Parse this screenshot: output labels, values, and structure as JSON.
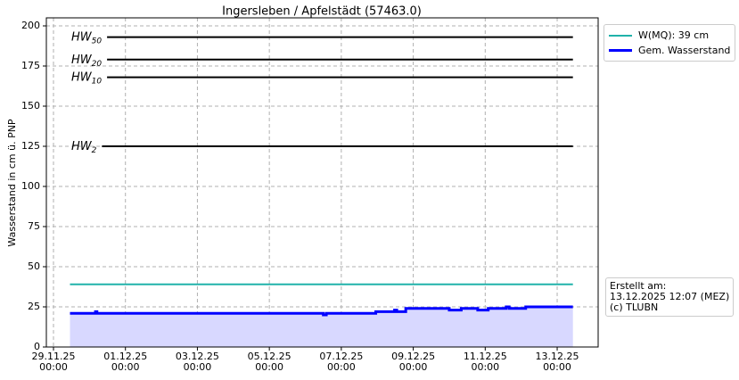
{
  "chart_data": {
    "type": "line",
    "title": "Ingersleben / Apfelstädt (57463.0)",
    "y_label": "Wasserstand in cm ü. PNP",
    "xlim": [
      "2025-11-28T19:15",
      "2025-12-14T03:20"
    ],
    "xticks": [
      {
        "value": "2025-11-29T00:00",
        "label": "29.11.25\n00:00"
      },
      {
        "value": "2025-12-01T00:00",
        "label": "01.12.25\n00:00"
      },
      {
        "value": "2025-12-03T00:00",
        "label": "03.12.25\n00:00"
      },
      {
        "value": "2025-12-05T00:00",
        "label": "05.12.25\n00:00"
      },
      {
        "value": "2025-12-07T00:00",
        "label": "07.12.25\n00:00"
      },
      {
        "value": "2025-12-09T00:00",
        "label": "09.12.25\n00:00"
      },
      {
        "value": "2025-12-11T00:00",
        "label": "11.12.25\n00:00"
      },
      {
        "value": "2025-12-13T00:00",
        "label": "13.12.25\n00:00"
      }
    ],
    "ylim": [
      0,
      205
    ],
    "yticks": [
      0,
      25,
      50,
      75,
      100,
      125,
      150,
      175,
      200
    ],
    "grid": true,
    "thresholds": [
      {
        "label": "HW",
        "subscript": "50",
        "value": 193
      },
      {
        "label": "HW",
        "subscript": "20",
        "value": 179
      },
      {
        "label": "HW",
        "subscript": "10",
        "value": 168
      },
      {
        "label": "HW",
        "subscript": "2",
        "value": 125
      }
    ],
    "threshold_color": "#000000",
    "series": [
      {
        "name": "W(MQ): 39 cm",
        "color": "#20b2aa",
        "x": [
          "2025-11-29T11:00",
          "2025-12-13T10:30"
        ],
        "values": [
          39,
          39
        ]
      },
      {
        "name": "Gem. Wasserstand",
        "color": "#0000ff",
        "fill": "#d8d8ff",
        "step": "post",
        "x": [
          "2025-11-29T11:00",
          "2025-11-30T04:00",
          "2025-11-30T05:00",
          "2025-12-06T12:00",
          "2025-12-06T14:00",
          "2025-12-07T23:00",
          "2025-12-08T11:30",
          "2025-12-08T13:00",
          "2025-12-08T19:00",
          "2025-12-10T00:00",
          "2025-12-10T08:00",
          "2025-12-10T19:00",
          "2025-12-11T02:00",
          "2025-12-11T14:00",
          "2025-12-11T16:00",
          "2025-12-12T03:00",
          "2025-12-13T10:30"
        ],
        "values": [
          21,
          22,
          21,
          20,
          21,
          22,
          23,
          22,
          24,
          23,
          24,
          23,
          24,
          25,
          24,
          25,
          25
        ]
      }
    ],
    "annotation": [
      "Erstellt am:",
      "13.12.2025 12:07 (MEZ)",
      "(c) TLUBN"
    ]
  }
}
